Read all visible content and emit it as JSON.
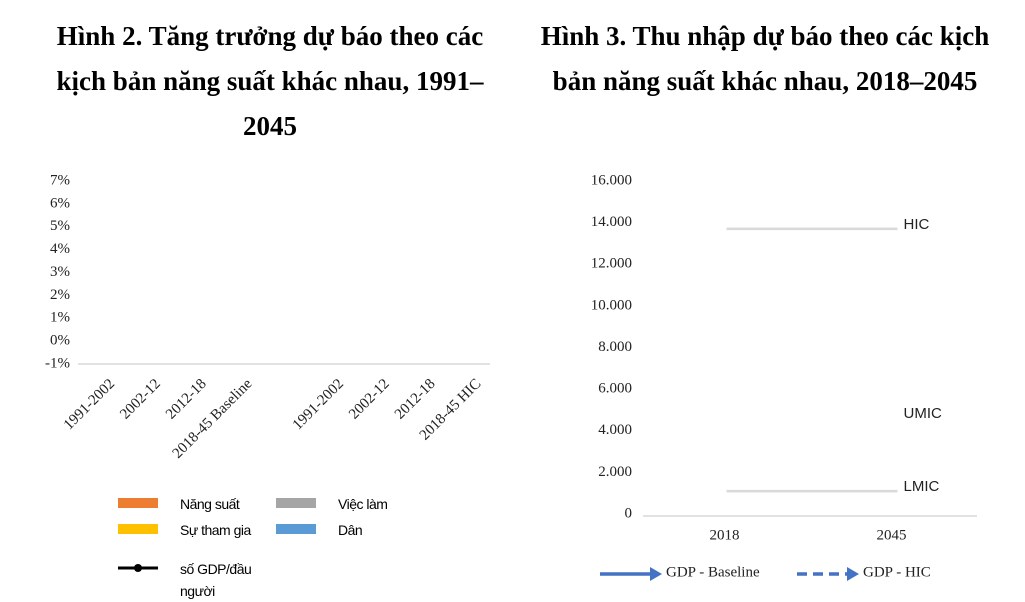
{
  "chart_data": [
    {
      "type": "bar",
      "stacked": true,
      "title": "Hình 2. Tăng trưởng dự báo theo các kịch bản năng suất khác nhau, 1991–2045",
      "categories": [
        "1991-2002",
        "2002-12",
        "2012-18",
        "2018-45 Baseline",
        null,
        "1991-2002",
        "2002-12",
        "2012-18",
        "2018-45 HIC"
      ],
      "ylim": [
        -1,
        7
      ],
      "yticks": [
        {
          "value": -1,
          "label": "-1%"
        },
        {
          "value": 0,
          "label": "0%"
        },
        {
          "value": 1,
          "label": "1%"
        },
        {
          "value": 2,
          "label": "2%"
        },
        {
          "value": 3,
          "label": "3%"
        },
        {
          "value": 4,
          "label": "4%"
        },
        {
          "value": 5,
          "label": "5%"
        },
        {
          "value": 6,
          "label": "6%"
        },
        {
          "value": 7,
          "label": "7%"
        }
      ],
      "series": [
        {
          "name": "Năng suất",
          "color": "#ed7d31",
          "values": [
            null,
            null,
            null,
            null,
            null,
            null,
            null,
            null,
            null
          ]
        },
        {
          "name": "Sự tham gia",
          "color": "#ffc000",
          "values": [
            null,
            null,
            null,
            null,
            null,
            null,
            null,
            null,
            null
          ]
        },
        {
          "name": "số GDP/đầu người",
          "color": "#000000",
          "type": "line",
          "values": [
            null,
            null,
            null,
            null,
            null,
            null,
            null,
            null,
            null
          ]
        },
        {
          "name": "Việc làm",
          "color": "#a5a5a5",
          "values": [
            null,
            null,
            null,
            null,
            null,
            null,
            null,
            null,
            null
          ]
        },
        {
          "name": "Dân",
          "color": "#5b9bd5",
          "values": [
            null,
            null,
            null,
            null,
            null,
            null,
            null,
            null,
            null
          ]
        }
      ]
    },
    {
      "type": "line",
      "title": "Hình 3. Thu nhập dự báo theo các kịch bản năng suất khác nhau, 2018–2045",
      "categories": [
        "2018",
        "2045"
      ],
      "ylim": [
        0,
        16000
      ],
      "yticks": [
        0,
        {
          "value": 2000,
          "label": "2.000"
        },
        {
          "value": 4000,
          "label": "4.000"
        },
        {
          "value": 6000,
          "label": "6.000"
        },
        {
          "value": 8000,
          "label": "8.000"
        },
        {
          "value": 10000,
          "label": "10.000"
        },
        {
          "value": 12000,
          "label": "12.000"
        },
        {
          "value": 14000,
          "label": "14.000"
        },
        {
          "value": 16000,
          "label": "16.000"
        }
      ],
      "series": [
        {
          "name": "GDP - Baseline",
          "color": "#4472c4",
          "dashed": false,
          "values": [
            null,
            null
          ]
        },
        {
          "name": "GDP - HIC",
          "color": "#4472c4",
          "dashed": true,
          "values": [
            null,
            null
          ]
        }
      ],
      "reference_lines": [
        {
          "label": "HIC",
          "value": 13700,
          "line": true,
          "color": "#d9d9d9"
        },
        {
          "label": "UMIC",
          "value": 4600,
          "line": false,
          "color": "#d9d9d9"
        },
        {
          "label": "LMIC",
          "value": 1100,
          "line": true,
          "color": "#d9d9d9"
        }
      ]
    }
  ]
}
